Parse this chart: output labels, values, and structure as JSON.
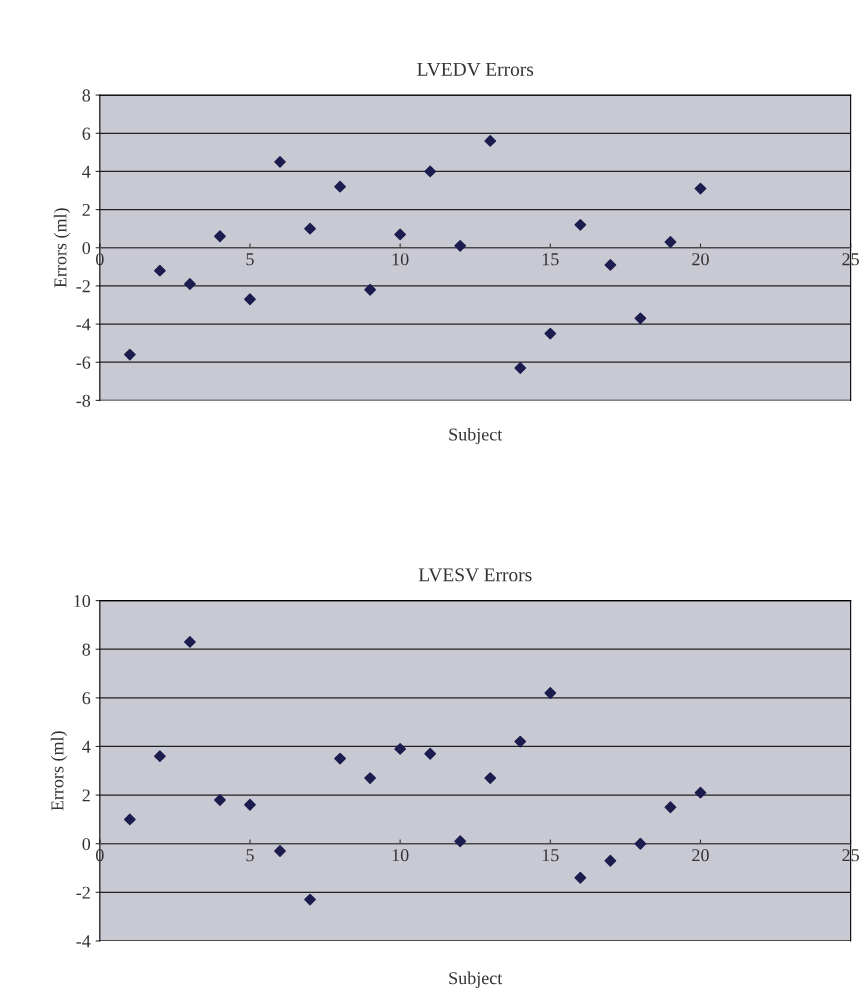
{
  "chart_data": [
    {
      "type": "scatter",
      "title": "LVEDV Errors",
      "xlabel": "Subject",
      "ylabel": "Errors (ml)",
      "x": [
        1,
        2,
        3,
        4,
        5,
        6,
        7,
        8,
        9,
        10,
        11,
        12,
        13,
        14,
        15,
        16,
        17,
        18,
        19,
        20
      ],
      "series": [
        {
          "color": "#1c1c4e",
          "values": [
            -5.6,
            -1.2,
            -1.9,
            0.6,
            -2.7,
            4.5,
            1.0,
            3.2,
            -2.2,
            0.7,
            4.0,
            0.1,
            5.6,
            -6.3,
            -4.5,
            1.2,
            -0.9,
            -3.7,
            0.3,
            3.1
          ]
        }
      ],
      "xlim": [
        0,
        25
      ],
      "xticks": [
        0,
        5,
        10,
        15,
        20,
        25
      ],
      "ylim": [
        -8,
        8
      ],
      "yticks": [
        -8,
        -6,
        -4,
        -2,
        0,
        2,
        4,
        6,
        8
      ],
      "grid": "y",
      "marker": "diamond",
      "legend": false
    },
    {
      "type": "scatter",
      "title": "LVESV Errors",
      "xlabel": "Subject",
      "ylabel": "Errors (ml)",
      "x": [
        1,
        2,
        3,
        4,
        5,
        6,
        7,
        8,
        9,
        10,
        11,
        12,
        13,
        14,
        15,
        16,
        17,
        18,
        19,
        20
      ],
      "series": [
        {
          "color": "#1c1c4e",
          "values": [
            1.0,
            3.6,
            8.3,
            1.8,
            1.6,
            -0.3,
            -2.3,
            3.5,
            2.7,
            3.9,
            3.7,
            0.1,
            2.7,
            4.2,
            6.2,
            -1.4,
            -0.7,
            0.0,
            1.5,
            2.1
          ]
        }
      ],
      "xlim": [
        0,
        25
      ],
      "xticks": [
        0,
        5,
        10,
        15,
        20,
        25
      ],
      "ylim": [
        -4,
        10
      ],
      "yticks": [
        -4,
        -2,
        0,
        2,
        4,
        6,
        8,
        10
      ],
      "grid": "y",
      "marker": "diamond",
      "legend": false
    }
  ]
}
